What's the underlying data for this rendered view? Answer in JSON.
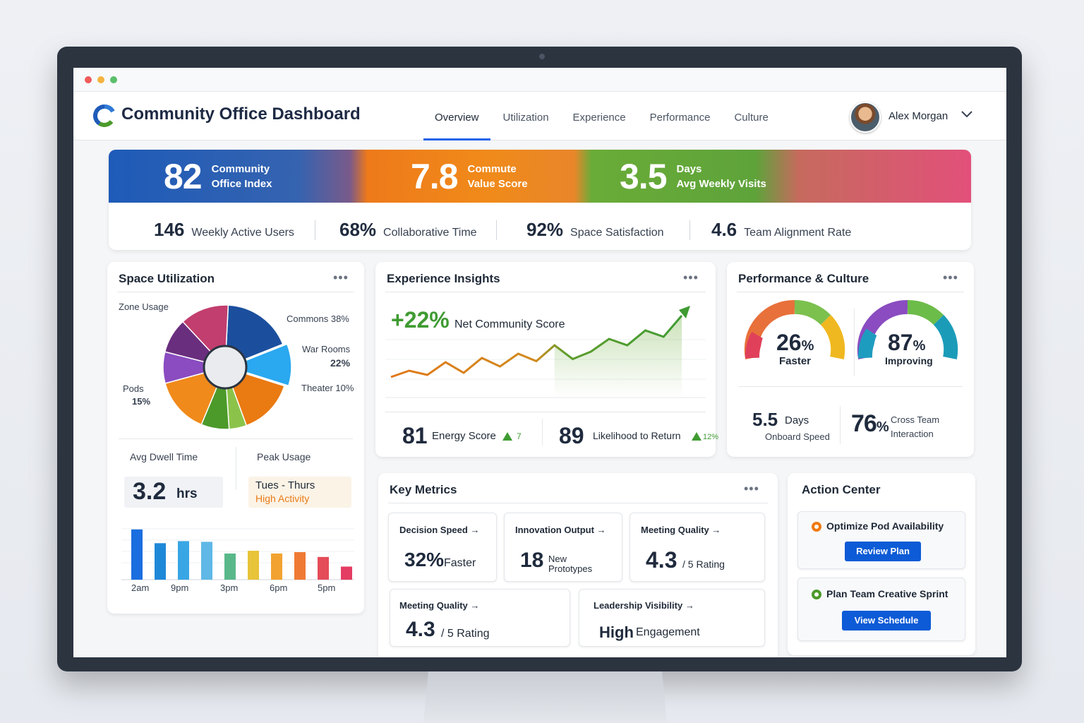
{
  "app": {
    "title": "Community Office Dashboard"
  },
  "nav": [
    "Overview",
    "Utilization",
    "Experience",
    "Performance",
    "Culture"
  ],
  "user": {
    "name": "Alex Morgan"
  },
  "kpis": [
    {
      "value": "82",
      "label1": "Community",
      "label2": "Office Index"
    },
    {
      "value": "7.8",
      "label1": "Commute",
      "label2": "Value Score"
    },
    {
      "value": "3.5",
      "label1": "Days",
      "label2": "Avg Weekly Visits"
    }
  ],
  "stats": [
    {
      "value": "146",
      "label": "Weekly Active Users"
    },
    {
      "value": "68%",
      "label": "Collaborative Time"
    },
    {
      "value": "92%",
      "label": "Space Satisfaction"
    },
    {
      "value": "4.6",
      "label": "Team Alignment Rate"
    }
  ],
  "space": {
    "title": "Space Utilization",
    "zone_label": "Zone Usage",
    "commons": "Commons 38%",
    "war_rooms": "War Rooms",
    "war_rooms_pct": "22%",
    "theater": "Theater 10%",
    "pods": "Pods",
    "pods_pct": "15%",
    "dwell_label": "Avg Dwell Time",
    "dwell_value": "3.2",
    "dwell_unit": "hrs",
    "peak_label": "Peak Usage",
    "peak_value": "Tues - Thurs",
    "peak_sub": "High Activity",
    "hour_labels": [
      "2am",
      "9pm",
      "3pm",
      "6pm",
      "5pm"
    ]
  },
  "experience": {
    "title": "Experience Insights",
    "delta": "+22%",
    "score_label": "Net Community Score",
    "energy_value": "81",
    "energy_label": "Energy Score",
    "energy_delta": "7",
    "return_value": "89",
    "return_label": "Likelihood to Return",
    "return_delta": "12%"
  },
  "performance": {
    "title": "Performance & Culture",
    "gauge1_value": "26",
    "gauge1_unit": "%",
    "gauge1_label": "Faster",
    "gauge2_value": "87",
    "gauge2_unit": "%",
    "gauge2_label": "Improving",
    "onboard_value": "5.5",
    "onboard_unit": "Days",
    "onboard_label": "Onboard Speed",
    "cross_value": "76",
    "cross_unit": "%",
    "cross_label1": "Cross Team",
    "cross_label2": "Interaction"
  },
  "key_metrics": {
    "title": "Key Metrics",
    "tiles": [
      {
        "label": "Decision Speed",
        "value": "32%",
        "suffix": "Faster"
      },
      {
        "label": "Innovation Output",
        "value": "18",
        "suffix1": "New",
        "suffix2": "Prototypes"
      },
      {
        "label": "Meeting Quality",
        "value": "4.3",
        "suffix": "/ 5 Rating"
      },
      {
        "label": "Meeting Quality",
        "value": "4.3",
        "suffix": "/ 5 Rating"
      },
      {
        "label": "Leadership Visibility",
        "value": "High",
        "suffix": "Engagement"
      }
    ]
  },
  "actions": {
    "title": "Action Center",
    "items": [
      {
        "label": "Optimize Pod Availability",
        "button": "Review Plan",
        "color": "#f07a10"
      },
      {
        "label": "Plan Team Creative Sprint",
        "button": "View Schedule",
        "color": "#4c9a2a"
      }
    ]
  },
  "arrow": "→",
  "more": "•••",
  "colors": {
    "accent": "#2563eb",
    "button": "#0d5bd6",
    "positive": "#3f9b32"
  },
  "chart_data": [
    {
      "type": "pie",
      "title": "Zone Usage",
      "labels": [
        "Commons",
        "War Rooms",
        "Theater",
        "Pods"
      ],
      "values": [
        38,
        22,
        10,
        15
      ]
    },
    {
      "type": "bar",
      "values": [
        73,
        53,
        56,
        55,
        38,
        42,
        38,
        40,
        33,
        19
      ],
      "colors": [
        "#1b6ee0",
        "#1e88d8",
        "#38a6e4",
        "#5fb8e6",
        "#59b88a",
        "#e8c43a",
        "#f2a230",
        "#ef7a34",
        "#e44c58",
        "#e43c62"
      ]
    },
    {
      "type": "line",
      "values": [
        10,
        16,
        12,
        24,
        14,
        28,
        20,
        32,
        25,
        40,
        27,
        34,
        46,
        40,
        54,
        48,
        68
      ]
    }
  ]
}
